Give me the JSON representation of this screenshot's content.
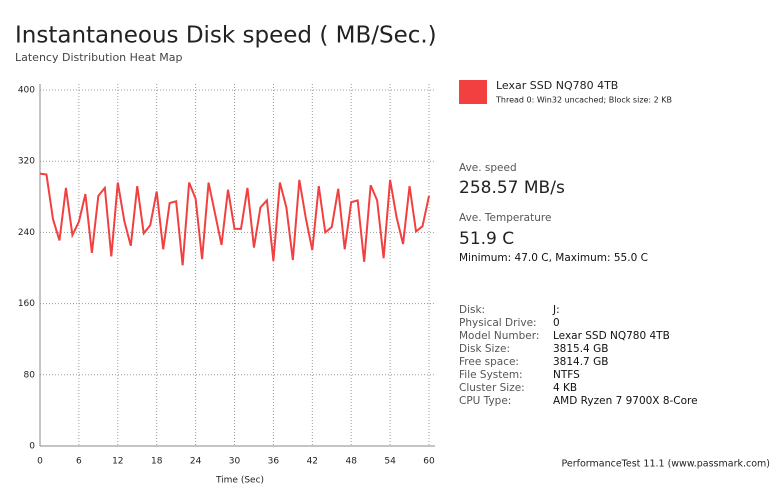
{
  "chart_data": {
    "type": "line",
    "title": "Instantaneous Disk speed ( MB/Sec.)",
    "subtitle": "Latency Distribution Heat Map",
    "x_label": "Time (Sec)",
    "x": [
      0,
      1,
      2,
      3,
      4,
      5,
      6,
      7,
      8,
      9,
      10,
      11,
      12,
      13,
      14,
      15,
      16,
      17,
      18,
      19,
      20,
      21,
      22,
      23,
      24,
      25,
      26,
      27,
      28,
      29,
      30,
      31,
      32,
      33,
      34,
      35,
      36,
      37,
      38,
      39,
      40,
      41,
      42,
      43,
      44,
      45,
      46,
      47,
      48,
      49,
      50,
      51,
      52,
      53,
      54,
      55,
      56,
      57,
      58,
      59,
      60
    ],
    "series": [
      {
        "name": "Lexar SSD NQ780 4TB",
        "note": "Thread 0: Win32 uncached; Block size: 2 KB",
        "color": "#f24040",
        "values": [
          306,
          305,
          255,
          231,
          290,
          237,
          252,
          283,
          217,
          281,
          290,
          213,
          296,
          253,
          225,
          292,
          239,
          248,
          286,
          221,
          273,
          275,
          203,
          296,
          278,
          210,
          296,
          261,
          226,
          288,
          244,
          244,
          290,
          223,
          268,
          276,
          208,
          296,
          268,
          209,
          299,
          256,
          220,
          292,
          240,
          246,
          289,
          221,
          274,
          276,
          207,
          293,
          276,
          211,
          299,
          257,
          227,
          292,
          241,
          247,
          281
        ]
      }
    ],
    "xlim": [
      0,
      60
    ],
    "xticks": [
      0,
      6,
      12,
      18,
      24,
      30,
      36,
      42,
      48,
      54,
      60
    ],
    "ylim": [
      0,
      400
    ],
    "yticks": [
      0,
      80,
      160,
      240,
      320,
      400
    ],
    "grid": true
  },
  "panel": {
    "speed_label": "Ave. speed",
    "speed_value": "258.57 MB/s",
    "temp_label": "Ave. Temperature",
    "temp_value": "51.9 C",
    "temp_range": "Minimum: 47.0 C, Maximum: 55.0 C",
    "info": [
      [
        "Disk:",
        "J:"
      ],
      [
        "Physical Drive:",
        "0"
      ],
      [
        "Model Number:",
        "Lexar SSD NQ780 4TB"
      ],
      [
        "Disk Size:",
        "3815.4 GB"
      ],
      [
        "Free space:",
        "3814.7 GB"
      ],
      [
        "File System:",
        "NTFS"
      ],
      [
        "Cluster Size:",
        "4 KB"
      ],
      [
        "CPU Type:",
        "AMD Ryzen 7 9700X 8-Core"
      ]
    ],
    "footer": "PerformanceTest 11.1 (www.passmark.com)"
  }
}
